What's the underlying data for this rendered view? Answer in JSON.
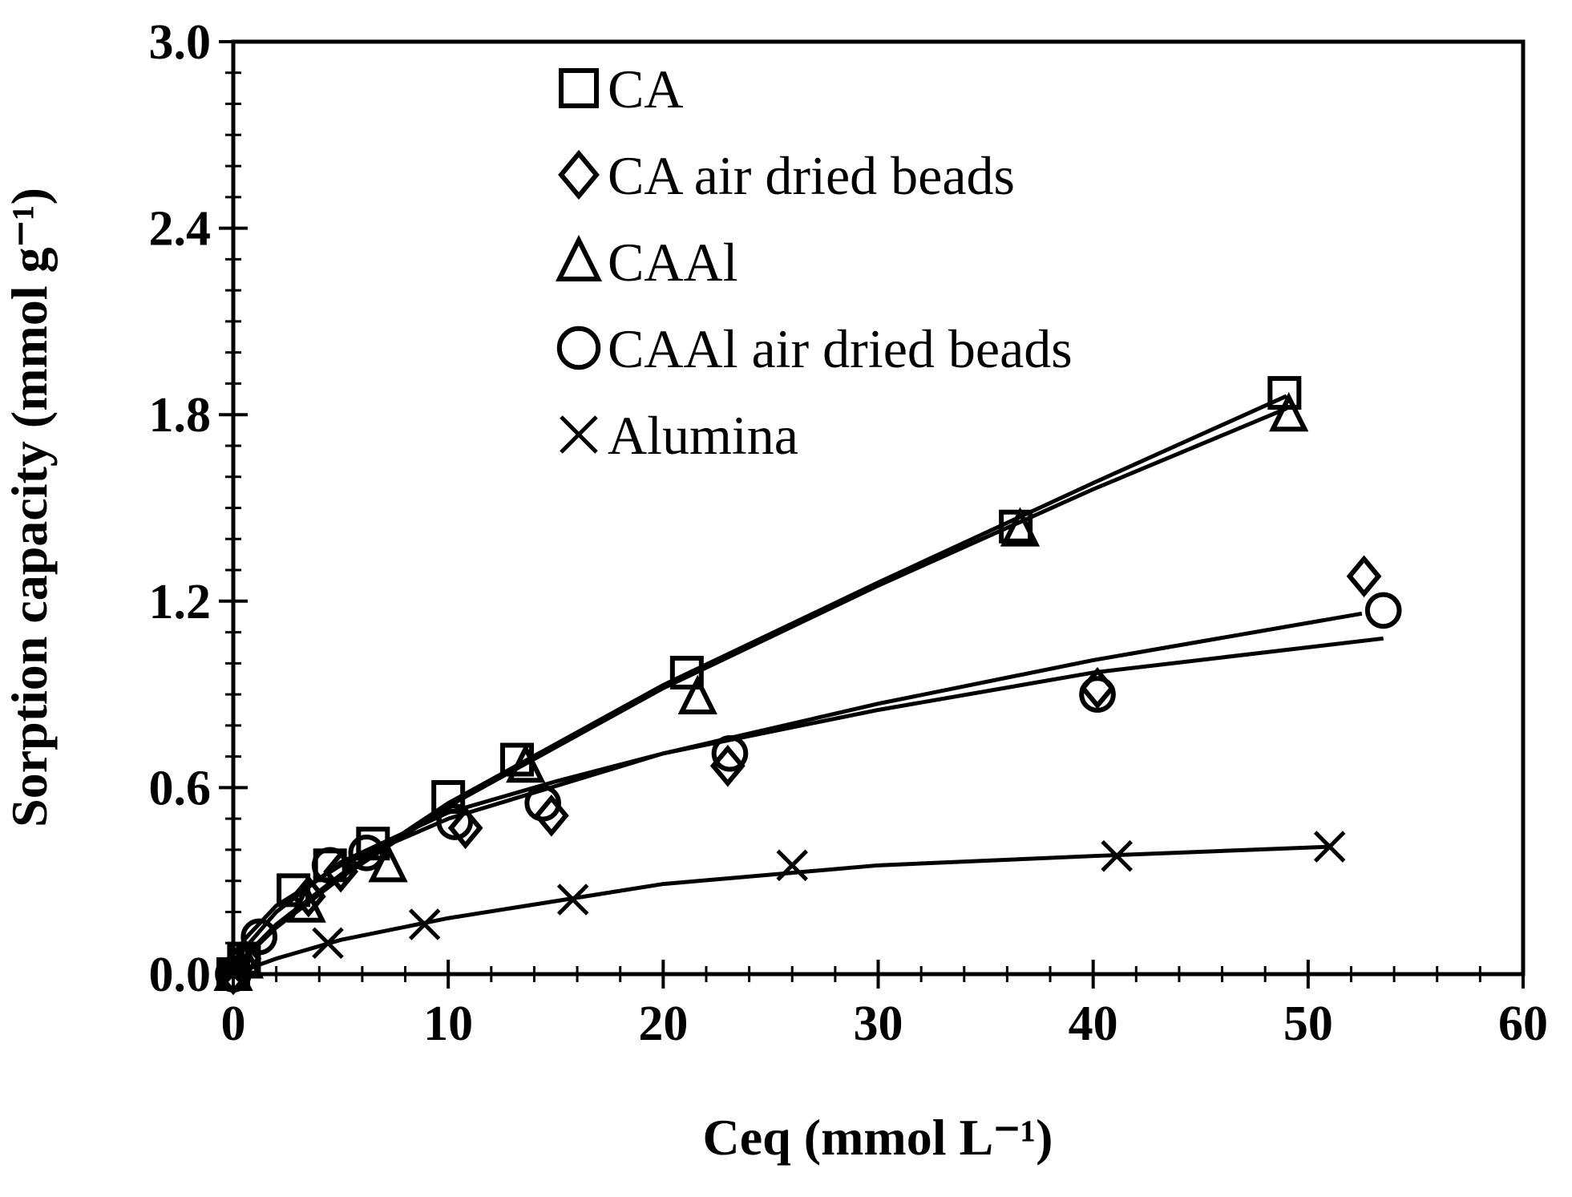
{
  "chart_data": {
    "type": "scatter",
    "xlabel": "Ceq (mmol L⁻¹)",
    "ylabel": "Sorption capacity (mmol g⁻¹)",
    "xlim": [
      0,
      60
    ],
    "xticks": [
      0,
      10,
      20,
      30,
      40,
      50,
      60
    ],
    "ylim": [
      0,
      3
    ],
    "yticks": [
      {
        "value": 0,
        "label": "0.0"
      },
      {
        "value": 0.6,
        "label": "0.6"
      },
      {
        "value": 1.2,
        "label": "1.2"
      },
      {
        "value": 1.8,
        "label": "1.8"
      },
      {
        "value": 2.4,
        "label": "2.4"
      },
      {
        "value": 3,
        "label": "3.0"
      }
    ],
    "legend": "top",
    "series": [
      {
        "name": "CA",
        "color": "#000000",
        "marker": "square",
        "x": [
          0,
          0.5,
          2.8,
          4.5,
          6.5,
          10.0,
          13.2,
          21.1,
          36.4,
          48.9
        ],
        "values": [
          0,
          0.05,
          0.27,
          0.35,
          0.42,
          0.57,
          0.69,
          0.97,
          1.44,
          1.87
        ],
        "fit": {
          "x": [
            0,
            0.5,
            2,
            5,
            10,
            20,
            30,
            40,
            49
          ],
          "values": [
            0,
            0.055,
            0.16,
            0.32,
            0.55,
            0.93,
            1.26,
            1.58,
            1.86
          ]
        }
      },
      {
        "name": "CA air dried beads",
        "color": "#000000",
        "marker": "diamond",
        "x": [
          0,
          0.5,
          3.5,
          5.0,
          10.8,
          14.8,
          23.0,
          40.2,
          52.6
        ],
        "values": [
          0,
          0.05,
          0.25,
          0.33,
          0.47,
          0.51,
          0.67,
          0.92,
          1.28
        ],
        "fit": {
          "x": [
            0,
            0.5,
            2,
            5,
            10,
            20,
            30,
            40,
            52.5
          ],
          "values": [
            0,
            0.11,
            0.22,
            0.35,
            0.5,
            0.71,
            0.87,
            1.01,
            1.16
          ]
        }
      },
      {
        "name": "CAAl",
        "color": "#000000",
        "marker": "triangle",
        "x": [
          0,
          0.5,
          3.4,
          7.2,
          13.6,
          21.6,
          36.6,
          49.1
        ],
        "values": [
          0,
          0.04,
          0.22,
          0.35,
          0.67,
          0.89,
          1.43,
          1.8
        ],
        "fit": {
          "x": [
            0,
            0.5,
            2,
            5,
            10,
            20,
            30,
            40,
            49
          ],
          "values": [
            0,
            0.05,
            0.15,
            0.31,
            0.54,
            0.92,
            1.25,
            1.56,
            1.82
          ]
        }
      },
      {
        "name": "CAAl air dried beads",
        "color": "#000000",
        "marker": "circle",
        "x": [
          0,
          1.2,
          4.5,
          6.2,
          10.3,
          14.4,
          23.1,
          40.2,
          53.5
        ],
        "values": [
          0,
          0.12,
          0.35,
          0.39,
          0.49,
          0.55,
          0.71,
          0.9,
          1.17
        ],
        "fit": {
          "x": [
            0,
            0.5,
            2,
            5,
            10,
            15,
            20,
            30,
            40,
            53.5
          ],
          "values": [
            0,
            0.08,
            0.2,
            0.36,
            0.52,
            0.62,
            0.71,
            0.85,
            0.97,
            1.08
          ]
        }
      },
      {
        "name": "Alumina",
        "color": "#000000",
        "marker": "x",
        "x": [
          0,
          4.4,
          8.9,
          15.8,
          26.0,
          41.1,
          51.0
        ],
        "values": [
          0,
          0.1,
          0.16,
          0.24,
          0.35,
          0.38,
          0.41
        ],
        "fit": {
          "x": [
            0,
            2,
            5,
            10,
            20,
            30,
            40,
            51
          ],
          "values": [
            0,
            0.05,
            0.11,
            0.18,
            0.29,
            0.35,
            0.38,
            0.41
          ]
        }
      }
    ]
  }
}
